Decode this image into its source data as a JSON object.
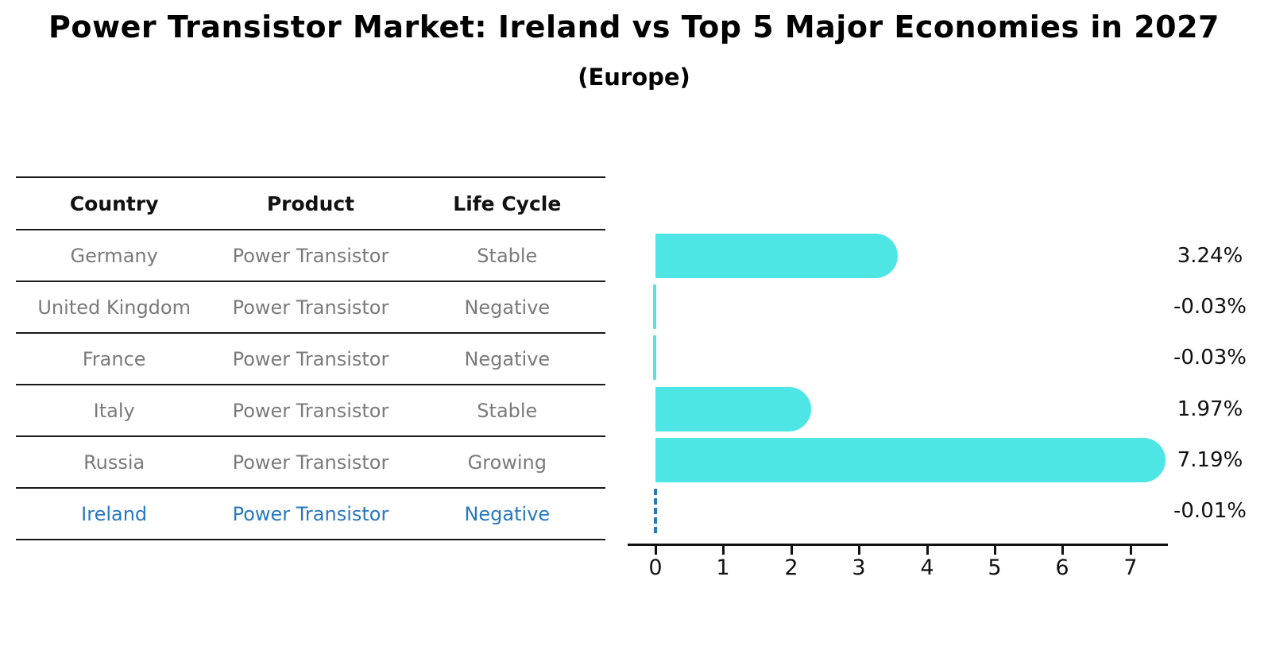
{
  "title": "Power Transistor Market: Ireland vs Top 5 Major Economies in 2027",
  "subtitle": "(Europe)",
  "table": {
    "headers": [
      "Country",
      "Product",
      "Life Cycle"
    ],
    "rows": [
      {
        "country": "Germany",
        "product": "Power Transistor",
        "life_cycle": "Stable",
        "highlight": false
      },
      {
        "country": "United Kingdom",
        "product": "Power Transistor",
        "life_cycle": "Negative",
        "highlight": false
      },
      {
        "country": "France",
        "product": "Power Transistor",
        "life_cycle": "Negative",
        "highlight": false
      },
      {
        "country": "Italy",
        "product": "Power Transistor",
        "life_cycle": "Stable",
        "highlight": false
      },
      {
        "country": "Russia",
        "product": "Power Transistor",
        "life_cycle": "Growing",
        "highlight": false
      },
      {
        "country": "Ireland",
        "product": "Power Transistor",
        "life_cycle": "Negative",
        "highlight": true
      }
    ]
  },
  "chart_data": {
    "type": "bar",
    "orientation": "horizontal",
    "title": "Power Transistor Market: Ireland vs Top 5 Major Economies in 2027",
    "subtitle": "(Europe)",
    "categories": [
      "Germany",
      "United Kingdom",
      "France",
      "Italy",
      "Russia",
      "Ireland"
    ],
    "values": [
      3.24,
      -0.03,
      -0.03,
      1.97,
      7.19,
      -0.01
    ],
    "value_labels": [
      "3.24%",
      "-0.03%",
      "-0.03%",
      "1.97%",
      "7.19%",
      "-0.01%"
    ],
    "x_ticks": [
      0,
      1,
      2,
      3,
      4,
      5,
      6,
      7
    ],
    "xlim": [
      -0.45,
      7.6
    ],
    "grid": false,
    "legend": "none",
    "bar_color": "#4DE6E5",
    "highlight_color": "#2878be",
    "highlight_index": 5,
    "highlight_style": "dashed-zero-line"
  },
  "colors": {
    "bar_cyan": "#4DE6E5",
    "ireland_blue": "#2878be",
    "table_text_gray": "#7a7a7a",
    "axis_black": "#111111",
    "line_dark": "#1a1a1a"
  }
}
